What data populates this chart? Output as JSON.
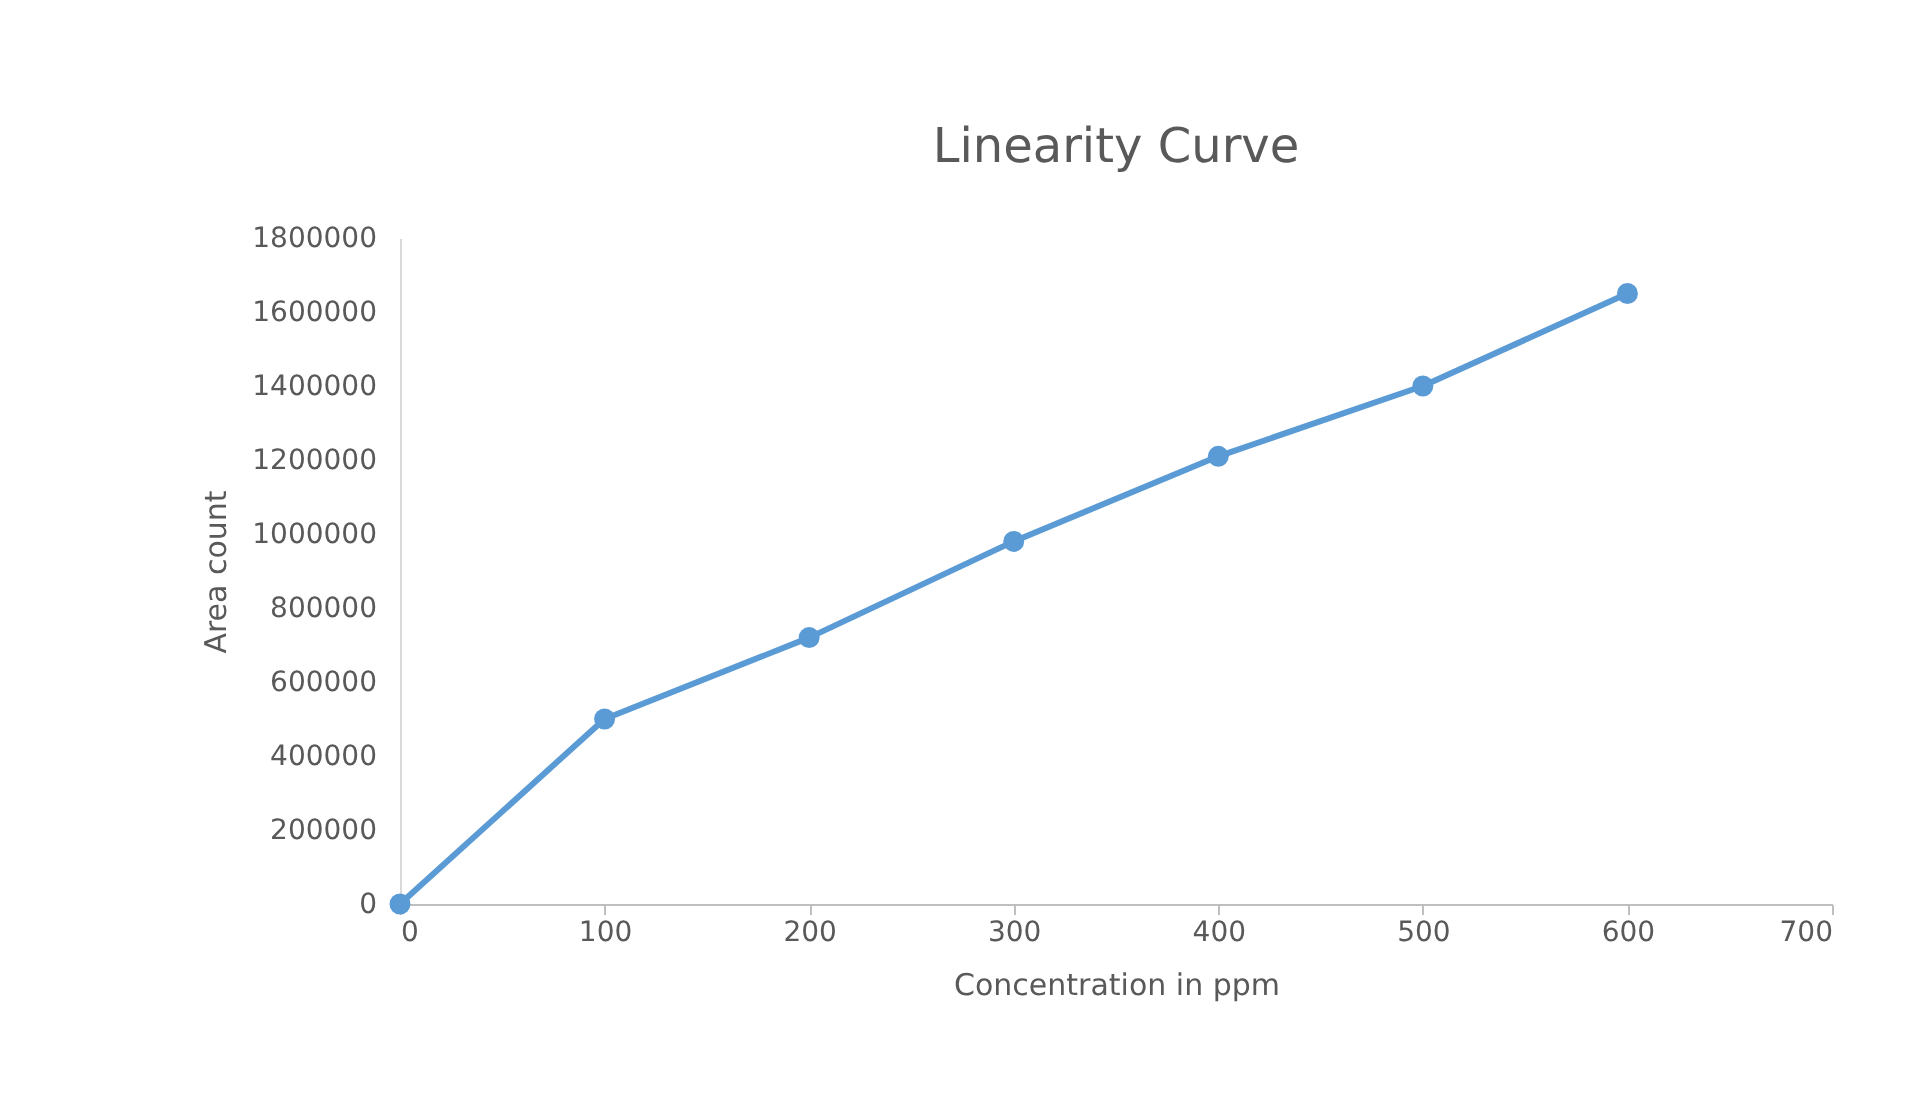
{
  "chart_data": {
    "type": "line",
    "title": "Linearity Curve",
    "xlabel": "Concentration in ppm",
    "ylabel": "Area count",
    "x": [
      0,
      100,
      200,
      300,
      400,
      500,
      600
    ],
    "series": [
      {
        "color": "#5b9bd5",
        "values": [
          0,
          500000,
          720000,
          980000,
          1210000,
          1400000,
          1650000
        ]
      }
    ],
    "xlim": [
      0,
      700
    ],
    "xticks": [
      0,
      100,
      200,
      300,
      400,
      500,
      600,
      700
    ],
    "ylim": [
      0,
      1800000
    ],
    "yticks": [
      0,
      200000,
      400000,
      600000,
      800000,
      1000000,
      1200000,
      1400000,
      1600000,
      1800000
    ],
    "grid": false,
    "marker": "circle",
    "line_style": "solid"
  }
}
